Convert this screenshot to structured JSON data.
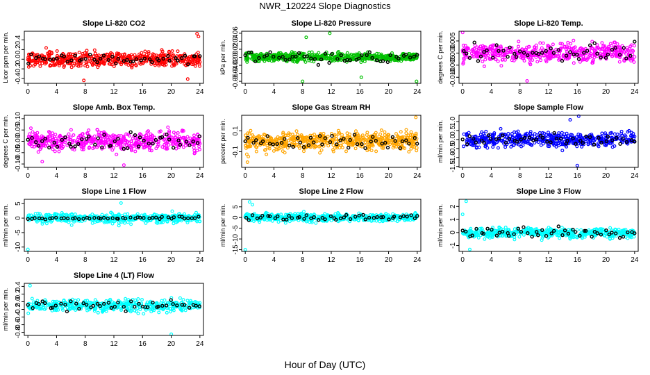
{
  "title": "NWR_120224  Slope Diagnostics",
  "x_axis_title": "Hour of Day (UTC)",
  "chart_data": [
    {
      "id": "co2",
      "type": "scatter",
      "title": "Slope Li-820 CO2",
      "ylabel": "Licor ppm per min.",
      "xlim": [
        -0.5,
        24.5
      ],
      "ylim": [
        -0.5,
        0.58
      ],
      "xticks": [
        "0",
        "4",
        "8",
        "12",
        "16",
        "20",
        "24"
      ],
      "yticks": [
        "-0.4",
        "-0.2",
        "0.0",
        "0.2",
        "0.4"
      ],
      "ytick_values": [
        -0.4,
        -0.2,
        0,
        0.2,
        0.4
      ],
      "color": "#ff0000",
      "center": 0.0,
      "spread": 0.13,
      "highlight_spread": 0.08,
      "n_points": 520,
      "outliers": [
        [
          23.6,
          0.53
        ],
        [
          23.8,
          0.47
        ],
        [
          7.8,
          -0.44
        ],
        [
          22.3,
          -0.41
        ]
      ]
    },
    {
      "id": "pressure",
      "type": "scatter",
      "title": "Slope Li-820 Pressure",
      "ylabel": "kPa per min.",
      "xlim": [
        -0.5,
        24.5
      ],
      "ylim": [
        -0.065,
        0.065
      ],
      "xticks": [
        "0",
        "4",
        "8",
        "12",
        "16",
        "20",
        "24"
      ],
      "yticks": [
        "-0.06",
        "-0.04",
        "-0.02",
        "0.00",
        "0.02",
        "0.04",
        "0.06"
      ],
      "ytick_values": [
        -0.06,
        -0.04,
        -0.02,
        0,
        0.02,
        0.04,
        0.06
      ],
      "color": "#00c000",
      "center": 0.0,
      "spread": 0.009,
      "highlight_spread": 0.012,
      "n_points": 520,
      "outliers": [
        [
          11.8,
          0.06
        ],
        [
          8.0,
          -0.06
        ],
        [
          23.9,
          -0.06
        ],
        [
          16.2,
          -0.05
        ],
        [
          8.5,
          0.05
        ]
      ]
    },
    {
      "id": "licor_temp",
      "type": "scatter",
      "title": "Slope Li-820 Temp.",
      "ylabel": "degrees C per min.",
      "xlim": [
        -0.5,
        24.5
      ],
      "ylim": [
        -0.0125,
        0.009
      ],
      "xticks": [
        "0",
        "4",
        "8",
        "12",
        "16",
        "20",
        "24"
      ],
      "yticks": [
        "-0.010",
        "-0.005",
        "0.000",
        "0.005"
      ],
      "ytick_values": [
        -0.01,
        -0.005,
        0,
        0.005
      ],
      "color": "#ff00ff",
      "center": 0.0,
      "spread": 0.0032,
      "highlight_spread": 0.0025,
      "n_points": 520,
      "outliers": [
        [
          0.0,
          0.0085
        ],
        [
          9.0,
          -0.0115
        ]
      ]
    },
    {
      "id": "box_temp",
      "type": "scatter",
      "title": "Slope Amb. Box Temp.",
      "ylabel": "degrees C per min.",
      "xlim": [
        -0.5,
        24.5
      ],
      "ylim": [
        -0.115,
        0.115
      ],
      "xticks": [
        "0",
        "4",
        "8",
        "12",
        "16",
        "20",
        "24"
      ],
      "yticks": [
        "-0.10",
        "-0.05",
        "0.00",
        "0.05",
        "0.10"
      ],
      "ytick_values": [
        -0.1,
        -0.05,
        0,
        0.05,
        0.1
      ],
      "color": "#ff00ff",
      "center": 0.0,
      "spread": 0.035,
      "highlight_spread": 0.03,
      "n_points": 520,
      "outliers": [
        [
          13.4,
          -0.105
        ],
        [
          2.0,
          -0.09
        ]
      ]
    },
    {
      "id": "rh",
      "type": "scatter",
      "title": "Slope Gas Stream RH",
      "ylabel": "percent per min.",
      "xlim": [
        -0.5,
        24.5
      ],
      "ylim": [
        -0.25,
        0.25
      ],
      "xticks": [
        "0",
        "4",
        "8",
        "12",
        "16",
        "20",
        "24"
      ],
      "yticks": [
        "-0.1",
        "0.1"
      ],
      "ytick_values": [
        -0.1,
        0.1
      ],
      "color": "#ffa500",
      "center": 0.0,
      "spread": 0.075,
      "highlight_spread": 0.06,
      "n_points": 560,
      "outliers": [
        [
          23.8,
          0.23
        ],
        [
          0.3,
          -0.2
        ]
      ]
    },
    {
      "id": "sample_flow",
      "type": "scatter",
      "title": "Slope Sample Flow",
      "ylabel": "ml/min per min.",
      "xlim": [
        -0.5,
        24.5
      ],
      "ylim": [
        -1.55,
        1.35
      ],
      "xticks": [
        "0",
        "4",
        "8",
        "12",
        "16",
        "20",
        "24"
      ],
      "yticks": [
        "-1.5",
        "-1.0",
        "-0.5",
        "0.0",
        "0.5",
        "1.0"
      ],
      "ytick_values": [
        -1.5,
        -1,
        -0.5,
        0,
        0.5,
        1
      ],
      "color": "#0000ff",
      "center": 0.0,
      "spread": 0.33,
      "highlight_spread": 0.25,
      "n_points": 500,
      "outliers": [
        [
          16.2,
          1.3
        ],
        [
          16.0,
          -1.45
        ],
        [
          15.0,
          1.1
        ]
      ]
    },
    {
      "id": "line1",
      "type": "scatter",
      "title": "Slope Line 1 Flow",
      "ylabel": "ml/min per min.",
      "xlim": [
        -0.5,
        24.5
      ],
      "ylim": [
        -11.5,
        6.5
      ],
      "xticks": [
        "0",
        "4",
        "8",
        "12",
        "16",
        "20",
        "24"
      ],
      "yticks": [
        "-10",
        "-5",
        "0",
        "5"
      ],
      "ytick_values": [
        -10,
        -5,
        0,
        5
      ],
      "color": "#00ffff",
      "center": 0.0,
      "spread": 1.3,
      "highlight_spread": 0.4,
      "n_points": 480,
      "outliers": [
        [
          13.0,
          5.2
        ],
        [
          0.0,
          -10.8
        ]
      ]
    },
    {
      "id": "line2",
      "type": "scatter",
      "title": "Slope Line 2 Flow",
      "ylabel": "ml/min per min.",
      "xlim": [
        -0.5,
        24.5
      ],
      "ylim": [
        -15.8,
        8.5
      ],
      "xticks": [
        "0",
        "4",
        "8",
        "12",
        "16",
        "20",
        "24"
      ],
      "yticks": [
        "-15",
        "-10",
        "-5",
        "0",
        "5"
      ],
      "ytick_values": [
        -15,
        -10,
        -5,
        0,
        5
      ],
      "color": "#00ffff",
      "center": 0.0,
      "spread": 1.6,
      "highlight_spread": 1.2,
      "n_points": 480,
      "outliers": [
        [
          0.0,
          -15.0
        ],
        [
          0.6,
          7.3
        ],
        [
          1.0,
          6.0
        ]
      ]
    },
    {
      "id": "line3",
      "type": "scatter",
      "title": "Slope Line 3 Flow",
      "ylabel": "ml/min per min.",
      "xlim": [
        -0.5,
        24.5
      ],
      "ylim": [
        -1.45,
        2.55
      ],
      "xticks": [
        "0",
        "4",
        "8",
        "12",
        "16",
        "20",
        "24"
      ],
      "yticks": [
        "-1",
        "0",
        "1",
        "2"
      ],
      "ytick_values": [
        -1,
        0,
        1,
        2
      ],
      "color": "#00ffff",
      "center": -0.05,
      "spread": 0.3,
      "highlight_spread": 0.35,
      "n_points": 480,
      "outliers": [
        [
          0.5,
          2.4
        ],
        [
          0.0,
          1.4
        ],
        [
          1.0,
          -1.3
        ]
      ]
    },
    {
      "id": "line4",
      "type": "scatter",
      "title": "Slope Line 4 (LT) Flow",
      "ylabel": "ml/min per min.",
      "xlim": [
        -0.5,
        24.5
      ],
      "ylim": [
        -0.88,
        0.48
      ],
      "xticks": [
        "0",
        "4",
        "8",
        "12",
        "16",
        "20",
        "24"
      ],
      "yticks": [
        "-0.8",
        "-0.6",
        "-0.4",
        "-0.2",
        "0.0",
        "0.2",
        "0.4"
      ],
      "ytick_values": [
        -0.8,
        -0.6,
        -0.4,
        -0.2,
        0,
        0.2,
        0.4
      ],
      "color": "#00ffff",
      "center": -0.1,
      "spread": 0.13,
      "highlight_spread": 0.1,
      "n_points": 440,
      "outliers": [
        [
          20.0,
          -0.85
        ],
        [
          0.3,
          0.42
        ]
      ]
    }
  ]
}
